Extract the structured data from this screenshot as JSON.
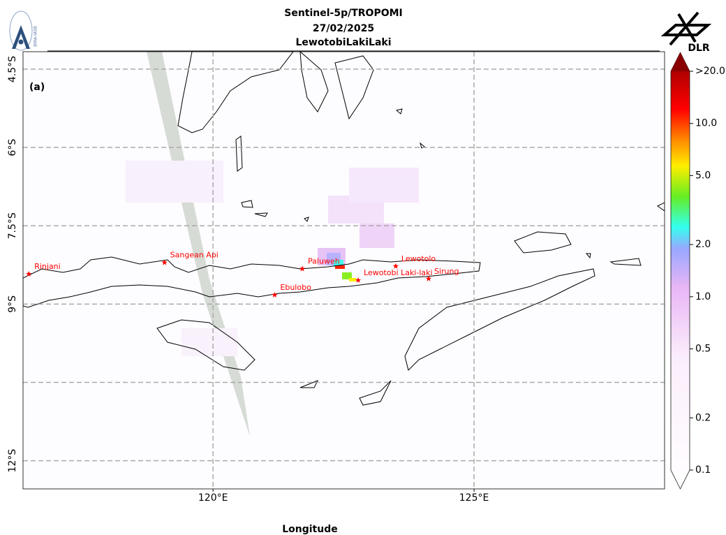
{
  "chart_data": {
    "type": "map",
    "title": [
      "Sentinel-5p/TROPOMI",
      "27/02/2025",
      "LewotobiLakiLaki"
    ],
    "panel_label": "(a)",
    "x_label": "Longitude",
    "xlim": [
      116.36,
      128.65
    ],
    "ylim": [
      -12.54,
      -4.165
    ],
    "xticks": [
      {
        "value": 120,
        "label": "120°E"
      },
      {
        "value": 125,
        "label": "125°E"
      }
    ],
    "yticks": [
      {
        "value": -4.5,
        "label": "4.5°S"
      },
      {
        "value": -6,
        "label": "6°S"
      },
      {
        "value": -7.5,
        "label": "7.5°S"
      },
      {
        "value": -9,
        "label": "9°S"
      },
      {
        "value": -10.5,
        "label": null
      },
      {
        "value": -12,
        "label": "12°S"
      }
    ],
    "grid": true,
    "colorbar": {
      "scale": "log",
      "lim": [
        0.1,
        20
      ],
      "ticks": [
        0.1,
        0.2,
        0.5,
        {
          "value": 1,
          "label": "1.0"
        },
        {
          "value": 2,
          "label": "2.0"
        },
        {
          "value": 5,
          "label": "5.0"
        },
        {
          "value": 10,
          "label": "10.0"
        },
        {
          "value": 20,
          "label": ">20.0"
        }
      ]
    },
    "volcanoes": {
      "color": "#ff0000",
      "names": [
        "Rinjani",
        "Sangean Api",
        "Paluweh",
        "Ebulobo",
        "Lewotolo",
        "Lewotobi Laki-laki",
        "Sirung"
      ],
      "lon": [
        116.47,
        119.07,
        121.71,
        121.18,
        123.5,
        122.78,
        124.13
      ],
      "lat": [
        -8.42,
        -8.2,
        -8.32,
        -8.82,
        -8.27,
        -8.54,
        -8.51
      ]
    },
    "logos": {
      "left": "BIRA-IASB",
      "right": "DLR"
    }
  }
}
